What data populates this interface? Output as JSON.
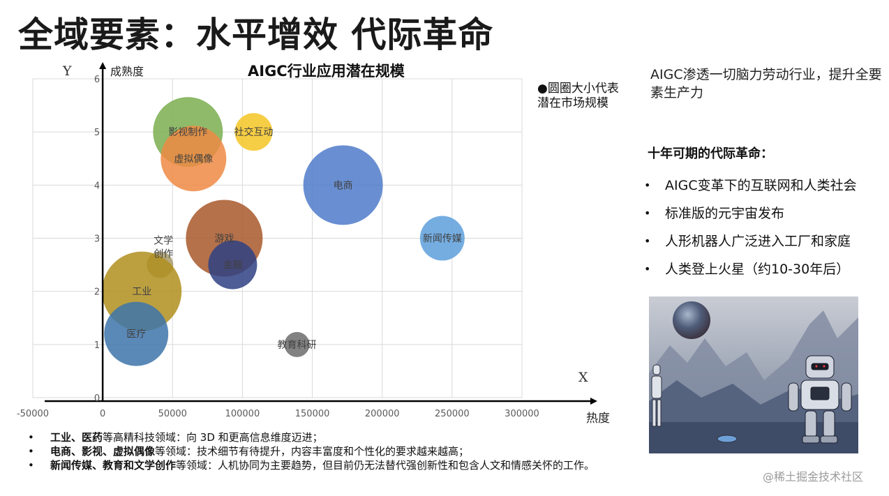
{
  "page": {
    "title": "全域要素：水平增效  代际革命",
    "watermark": "@稀土掘金技术社区"
  },
  "chart_data": {
    "type": "bubble",
    "title": "AIGC行业应用潜在规模",
    "xlabel": "热度",
    "ylabel": "成熟度",
    "x_axis_marker": "X",
    "y_axis_marker": "Y",
    "xlim": [
      -50000,
      300000
    ],
    "ylim": [
      0,
      6
    ],
    "x_ticks": [
      -50000,
      0,
      50000,
      100000,
      150000,
      200000,
      250000,
      300000
    ],
    "y_ticks": [
      0,
      1,
      2,
      3,
      4,
      5,
      6
    ],
    "grid": true,
    "legend_note": "●圆圈大小代表潜在市场规模",
    "points": [
      {
        "name": "影视制作",
        "x": 61000,
        "y": 5.0,
        "size": 50,
        "color": "#7aae4f"
      },
      {
        "name": "虚拟偶像",
        "x": 65000,
        "y": 4.5,
        "size": 47,
        "color": "#ef8a44"
      },
      {
        "name": "社交互动",
        "x": 108000,
        "y": 5.0,
        "size": 27,
        "color": "#f5c524"
      },
      {
        "name": "电商",
        "x": 172000,
        "y": 4.0,
        "size": 57,
        "color": "#4f7bca"
      },
      {
        "name": "新闻传媒",
        "x": 243000,
        "y": 3.0,
        "size": 32,
        "color": "#5d9fdc"
      },
      {
        "name": "游戏",
        "x": 87000,
        "y": 3.0,
        "size": 55,
        "color": "#a8582a"
      },
      {
        "name": "金融",
        "x": 93000,
        "y": 2.5,
        "size": 35,
        "color": "#2f4182"
      },
      {
        "name": "文学创作",
        "x": 41000,
        "y": 2.5,
        "size": 19,
        "color": "#a89968"
      },
      {
        "name": "工业",
        "x": 28000,
        "y": 2.0,
        "size": 57,
        "color": "#b08f1f"
      },
      {
        "name": "医疗",
        "x": 24000,
        "y": 1.2,
        "size": 46,
        "color": "#3d74aa"
      },
      {
        "name": "教育科研",
        "x": 139000,
        "y": 1.0,
        "size": 18,
        "color": "#6c6c6c"
      }
    ]
  },
  "right_panel": {
    "intro": "AIGC渗透一切脑力劳动行业，提升全要素生产力",
    "heading": "十年可期的代际革命：",
    "items": [
      "AIGC变革下的互联网和人类社会",
      "标准版的元宇宙发布",
      "人形机器人广泛进入工厂和家庭",
      "人类登上火星（约10-30年后）"
    ]
  },
  "bottom_notes": [
    {
      "bold": "工业、医药",
      "text": "等高精科技领域：向 3D 和更高信息维度迈进；"
    },
    {
      "bold": "电商、影视、虚拟偶像",
      "text": "等领域：技术细节有待提升，内容丰富度和个性化的要求越来越高；"
    },
    {
      "bold": "新闻传媒、教育和文学创作",
      "text": "等领域：人机协同为主要趋势，但目前仍无法替代强创新性和包含人文和情感关怀的工作。"
    }
  ],
  "colors": {
    "axis": "#000000",
    "grid": "#d9d9d9",
    "tick_text": "#595959",
    "bubble_label": "#404040"
  }
}
